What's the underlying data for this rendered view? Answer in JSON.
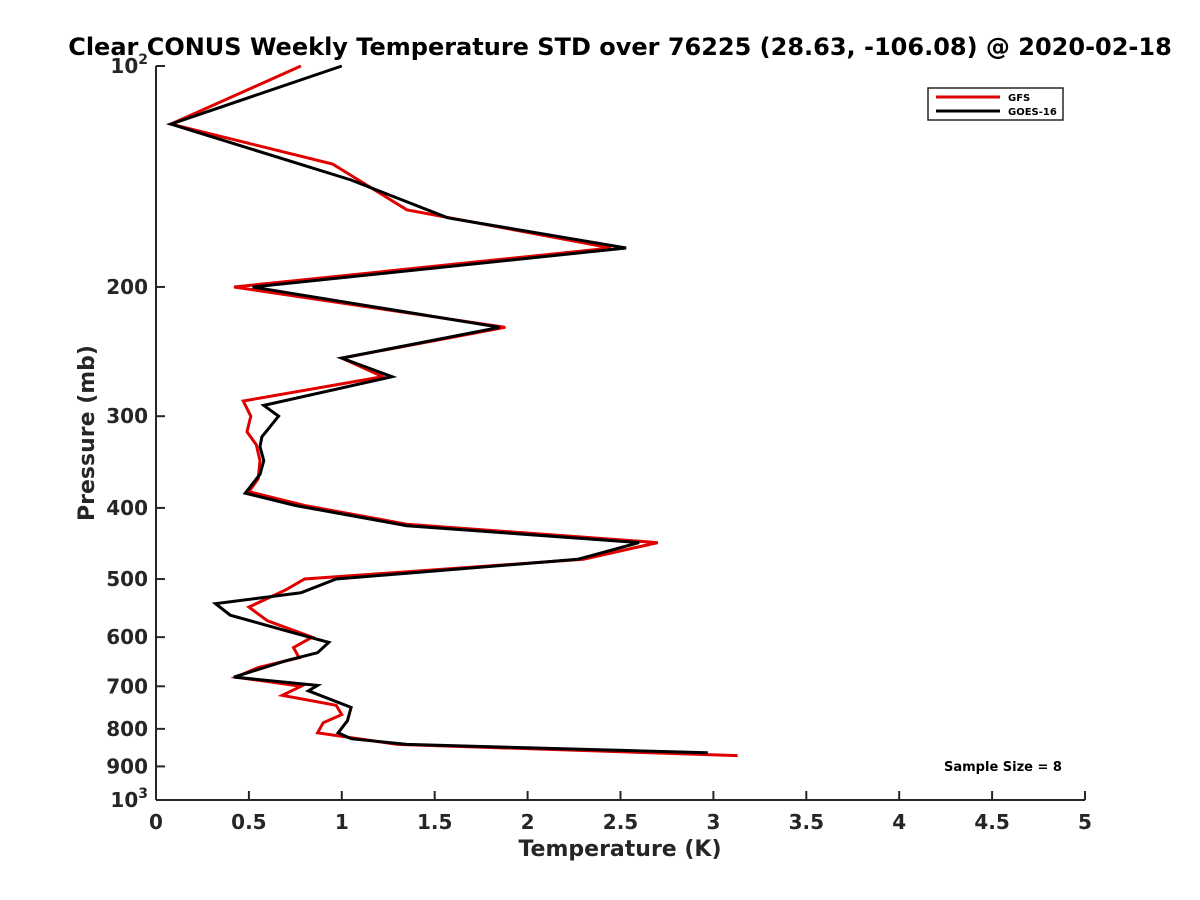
{
  "chart_data": {
    "type": "line",
    "title": "Clear CONUS Weekly Temperature STD over 76225 (28.63, -106.08) @ 2020-02-18",
    "xlabel": "Temperature (K)",
    "ylabel": "Pressure (mb)",
    "xlim": [
      0,
      5
    ],
    "ylim": [
      100,
      1000
    ],
    "yscale": "log",
    "y_reversed": true,
    "x_ticks": [
      0,
      0.5,
      1,
      1.5,
      2,
      2.5,
      3,
      3.5,
      4,
      4.5,
      5
    ],
    "x_tick_labels": [
      "0",
      "0.5",
      "1",
      "1.5",
      "2",
      "2.5",
      "3",
      "3.5",
      "4",
      "4.5",
      "5"
    ],
    "y_ticks": [
      100,
      200,
      300,
      400,
      500,
      600,
      700,
      800,
      900,
      1000
    ],
    "y_tick_labels": [
      {
        "base": "10",
        "exp": "2"
      },
      {
        "text": "200"
      },
      {
        "text": "300"
      },
      {
        "text": "400"
      },
      {
        "text": "500"
      },
      {
        "text": "600"
      },
      {
        "text": "700"
      },
      {
        "text": "800"
      },
      {
        "text": "900"
      },
      {
        "base": "10",
        "exp": "3"
      }
    ],
    "grid": false,
    "legend_position": "top-right",
    "annotation": "Sample Size = 8",
    "series": [
      {
        "name": "GFS",
        "color": "#e00000",
        "points": [
          [
            0.78,
            100
          ],
          [
            0.08,
            120
          ],
          [
            0.95,
            136
          ],
          [
            1.35,
            157
          ],
          [
            2.45,
            177
          ],
          [
            0.42,
            200
          ],
          [
            1.88,
            227
          ],
          [
            1.0,
            250
          ],
          [
            1.22,
            265
          ],
          [
            0.47,
            286
          ],
          [
            0.51,
            300
          ],
          [
            0.49,
            315
          ],
          [
            0.54,
            328
          ],
          [
            0.56,
            345
          ],
          [
            0.55,
            365
          ],
          [
            0.5,
            380
          ],
          [
            0.8,
            397
          ],
          [
            1.35,
            421
          ],
          [
            2.7,
            446
          ],
          [
            2.3,
            470
          ],
          [
            0.8,
            500
          ],
          [
            0.7,
            517
          ],
          [
            0.5,
            546
          ],
          [
            0.6,
            570
          ],
          [
            0.84,
            600
          ],
          [
            0.74,
            620
          ],
          [
            0.77,
            640
          ],
          [
            0.55,
            660
          ],
          [
            0.43,
            680
          ],
          [
            0.78,
            700
          ],
          [
            0.68,
            720
          ],
          [
            0.97,
            743
          ],
          [
            1.0,
            765
          ],
          [
            0.9,
            785
          ],
          [
            0.87,
            810
          ],
          [
            1.3,
            840
          ],
          [
            3.13,
            870
          ]
        ]
      },
      {
        "name": "GOES-16",
        "color": "#000000",
        "points": [
          [
            1.0,
            100
          ],
          [
            0.08,
            120
          ],
          [
            1.05,
            143
          ],
          [
            1.57,
            161
          ],
          [
            2.53,
            177
          ],
          [
            0.52,
            200
          ],
          [
            1.85,
            227
          ],
          [
            1.0,
            250
          ],
          [
            1.27,
            265
          ],
          [
            0.58,
            290
          ],
          [
            0.66,
            300
          ],
          [
            0.57,
            320
          ],
          [
            0.56,
            330
          ],
          [
            0.58,
            345
          ],
          [
            0.56,
            360
          ],
          [
            0.48,
            382
          ],
          [
            0.75,
            397
          ],
          [
            1.35,
            423
          ],
          [
            2.6,
            446
          ],
          [
            2.27,
            470
          ],
          [
            0.97,
            500
          ],
          [
            0.78,
            522
          ],
          [
            0.32,
            540
          ],
          [
            0.4,
            560
          ],
          [
            0.72,
            590
          ],
          [
            0.93,
            610
          ],
          [
            0.87,
            630
          ],
          [
            0.7,
            646
          ],
          [
            0.42,
            680
          ],
          [
            0.87,
            698
          ],
          [
            0.82,
            710
          ],
          [
            1.05,
            748
          ],
          [
            1.03,
            780
          ],
          [
            0.98,
            810
          ],
          [
            1.05,
            825
          ],
          [
            1.35,
            840
          ],
          [
            2.97,
            862
          ]
        ]
      }
    ]
  }
}
